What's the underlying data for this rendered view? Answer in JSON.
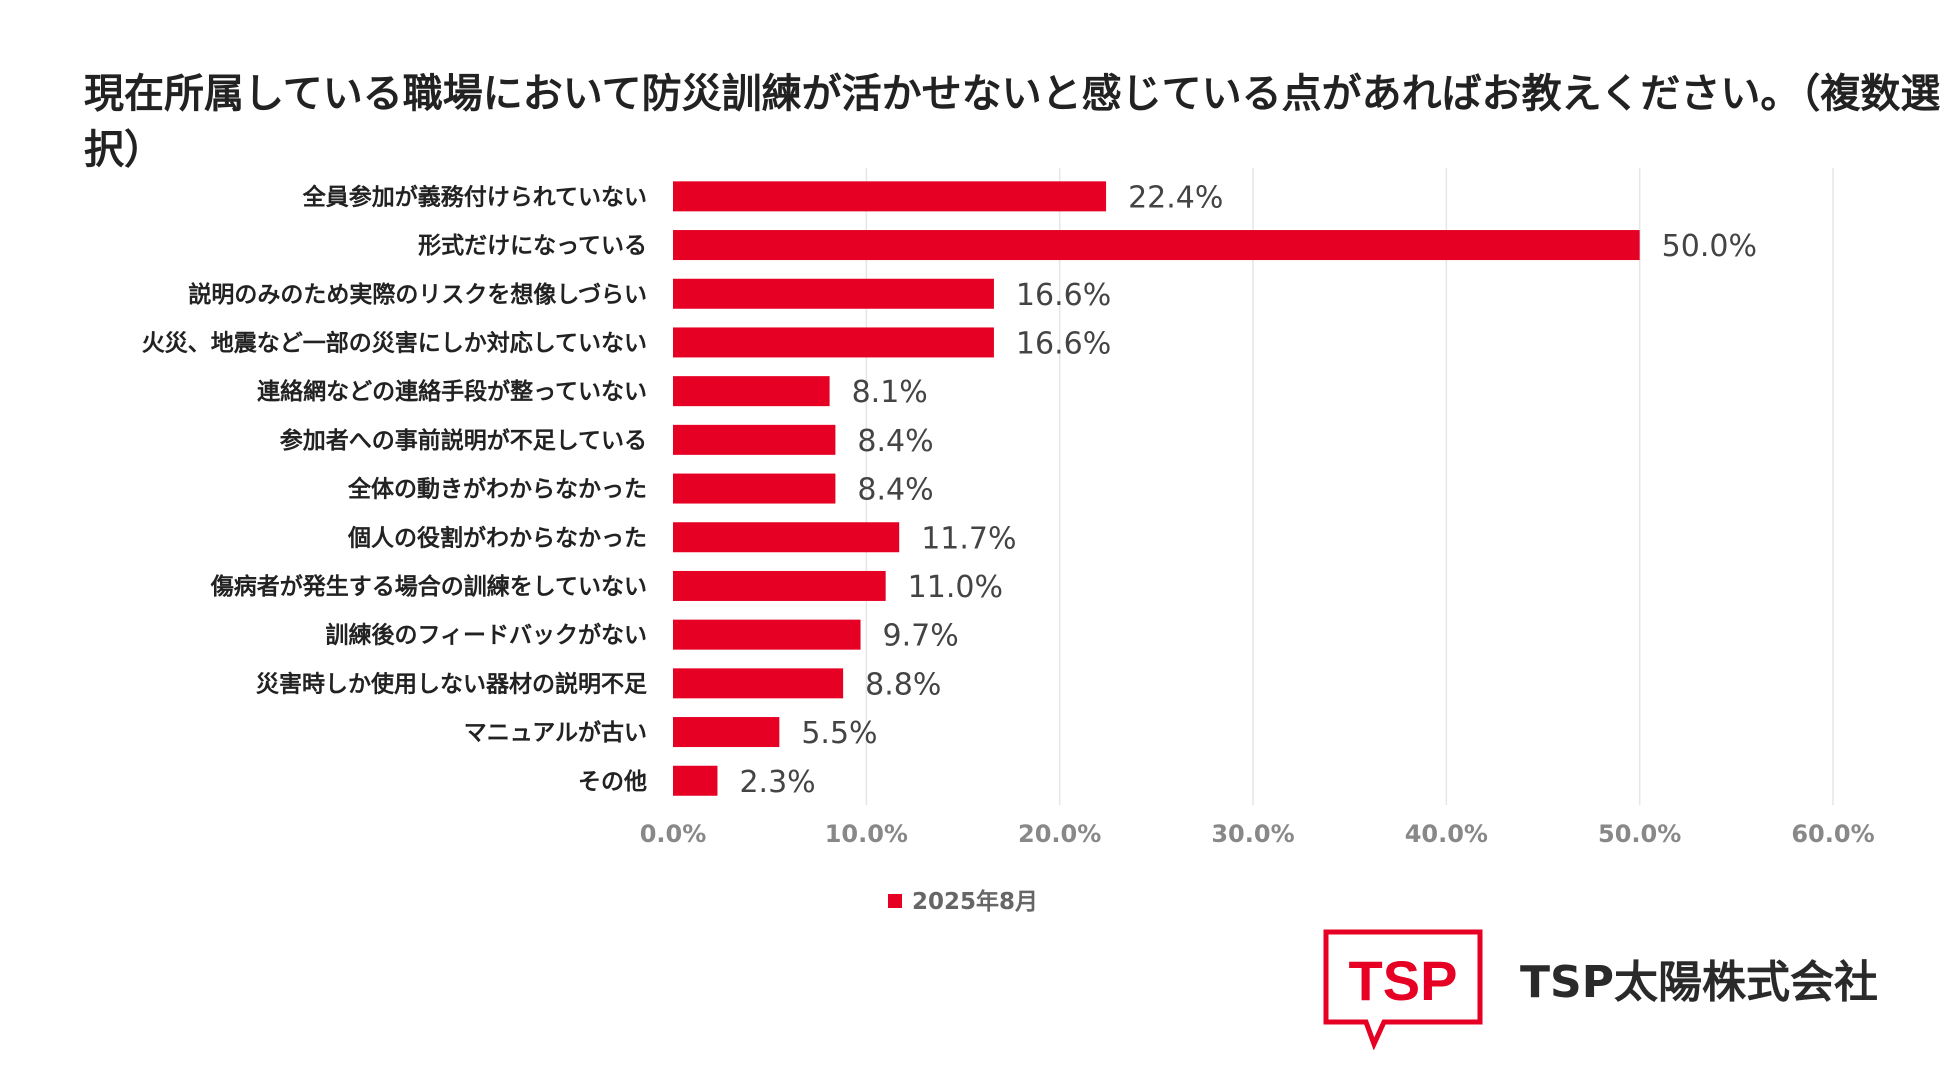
{
  "chart_data": {
    "type": "bar",
    "orientation": "horizontal",
    "title": "現在所属している職場において防災訓練が活かせないと感じている点があればお教えください。（複数選択）",
    "categories": [
      "全員参加が義務付けられていない",
      "形式だけになっている",
      "説明のみのため実際のリスクを想像しづらい",
      "火災、地震など一部の災害にしか対応していない",
      "連絡網などの連絡手段が整っていない",
      "参加者への事前説明が不足している",
      "全体の動きがわからなかった",
      "個人の役割がわからなかった",
      "傷病者が発生する場合の訓練をしていない",
      "訓練後のフィードバックがない",
      "災害時しか使用しない器材の説明不足",
      "マニュアルが古い",
      "その他"
    ],
    "values": [
      22.4,
      50.0,
      16.6,
      16.6,
      8.1,
      8.4,
      8.4,
      11.7,
      11.0,
      9.7,
      8.8,
      5.5,
      2.3
    ],
    "value_labels": [
      "22.4%",
      "50.0%",
      "16.6%",
      "16.6%",
      "8.1%",
      "8.4%",
      "8.4%",
      "11.7%",
      "11.0%",
      "9.7%",
      "8.8%",
      "5.5%",
      "2.3%"
    ],
    "series_name": "2025年8月",
    "xlim": [
      0,
      60
    ],
    "x_ticks": [
      "0.0%",
      "10.0%",
      "20.0%",
      "30.0%",
      "40.0%",
      "50.0%",
      "60.0%"
    ],
    "grid": true,
    "legend_position": "bottom",
    "bar_color": "#e60023"
  },
  "logo": {
    "mark_text": "TSP",
    "color": "#e60023"
  },
  "company": {
    "name": "TSP太陽株式会社"
  }
}
